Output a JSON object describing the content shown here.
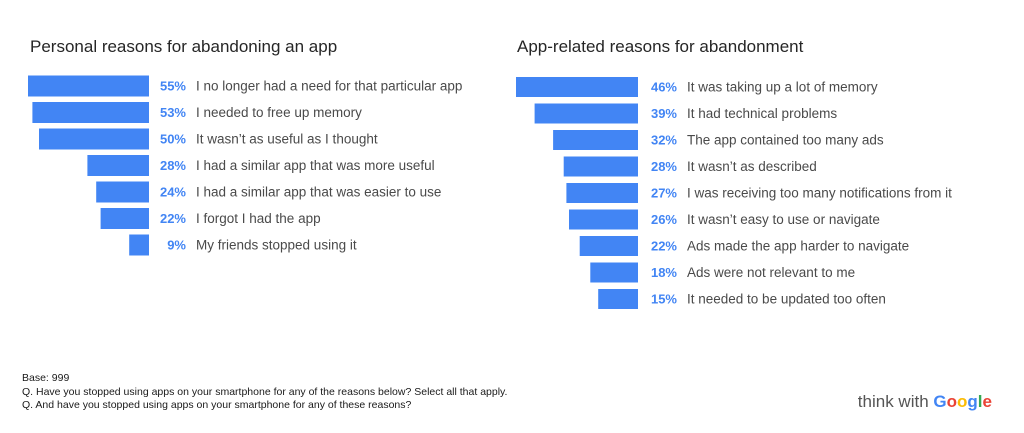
{
  "chart_data": [
    {
      "type": "bar",
      "title": "Personal reasons for abandoning an app",
      "categories": [
        "I no longer had a need for that particular app",
        "I needed to free up memory",
        "It wasn’t as useful as I thought",
        "I had a similar app that was more useful",
        "I had a similar app that was easier to use",
        "I forgot I had the app",
        "My friends stopped using it"
      ],
      "values": [
        55,
        53,
        50,
        28,
        24,
        22,
        9
      ],
      "value_labels": [
        "55%",
        "53%",
        "50%",
        "28%",
        "24%",
        "22%",
        "9%"
      ],
      "orientation": "horizontal",
      "bar_alignment": "right",
      "grid": false
    },
    {
      "type": "bar",
      "title": "App-related reasons for abandonment",
      "categories": [
        "It was taking up a lot of memory",
        "It had technical problems",
        "The app contained too many ads",
        "It wasn’t as described",
        "I was receiving too many notifications from it",
        "It wasn’t easy to use or navigate",
        "Ads made the app harder to navigate",
        "Ads were not relevant to me",
        "It needed to be updated too often"
      ],
      "values": [
        46,
        39,
        32,
        28,
        27,
        26,
        22,
        18,
        15
      ],
      "value_labels": [
        "46%",
        "39%",
        "32%",
        "28%",
        "27%",
        "26%",
        "22%",
        "18%",
        "15%"
      ],
      "orientation": "horizontal",
      "bar_alignment": "right",
      "grid": false
    }
  ],
  "colors": {
    "bar": "#4285f4",
    "value_label": "#4285f4",
    "category_label": "#4a4a4a",
    "title": "#262626",
    "google": [
      "#4285f4",
      "#ea4335",
      "#fbbc05",
      "#4285f4",
      "#34a853",
      "#ea4335"
    ]
  },
  "footnotes": {
    "base": "Base: 999",
    "q1": "Q. Have you stopped using apps on your smartphone for any of the reasons below? Select all that apply.",
    "q2": "Q. And have you stopped using apps on your smartphone for any of these reasons?"
  },
  "brand": {
    "lead": "think with ",
    "name": "Google"
  }
}
